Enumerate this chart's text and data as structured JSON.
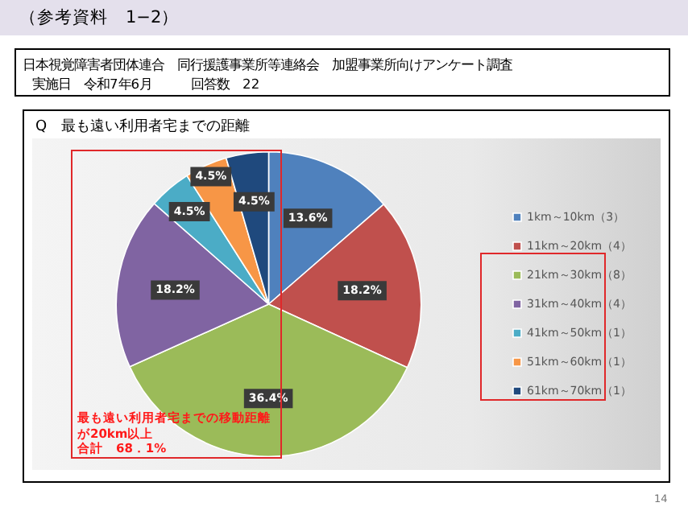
{
  "chart_data": {
    "type": "pie",
    "title": "Q　最も遠い利用者宅までの距離",
    "categories": [
      "1km～10km（3）",
      "11km～20km（4）",
      "21km～30km（8）",
      "31km～40km（4）",
      "41km～50km（1）",
      "51km～60km（1）",
      "61km～70km（1）"
    ],
    "values": [
      13.6,
      18.2,
      36.4,
      18.2,
      4.5,
      4.5,
      4.5
    ],
    "value_labels": [
      "13.6%",
      "18.2%",
      "36.4%",
      "18.2%",
      "4.5%",
      "4.5%",
      "4.5%"
    ],
    "colors": [
      "#4f81bd",
      "#c0504d",
      "#9bbb59",
      "#8064a2",
      "#4bacc6",
      "#f79646",
      "#1f497d"
    ],
    "legend": "right",
    "annotations": [
      "（参考資料　1−2）",
      "日本視覚障害者団体連合　同行援護事業所等連絡会　加盟事業所向けアンケート調査",
      "実施日　令和7年6月　　　回答数　22",
      "最も遠い利用者宅までの移動距離が20km以上",
      "合計　68．1%",
      "14"
    ]
  }
}
